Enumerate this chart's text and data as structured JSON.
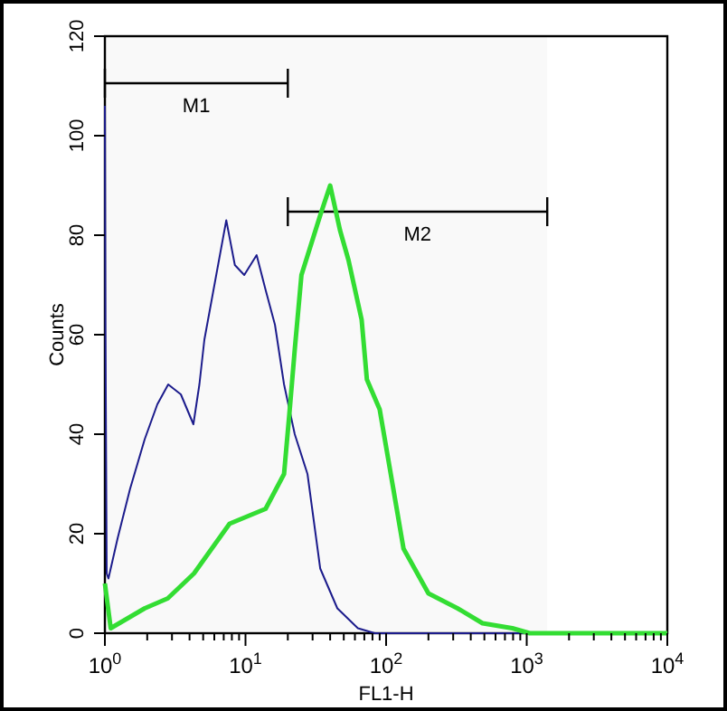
{
  "chart_data": {
    "type": "line",
    "xlabel": "FL1-H",
    "ylabel": "Counts",
    "log": "x",
    "xlim": [
      1,
      10000
    ],
    "ylim": [
      0,
      120
    ],
    "xticks": [
      {
        "value": 1,
        "label": "10$^{0}$"
      },
      {
        "value": 2,
        "label": null
      },
      {
        "value": 3,
        "label": null
      },
      {
        "value": 4,
        "label": null
      },
      {
        "value": 5,
        "label": null
      },
      {
        "value": 6,
        "label": null
      },
      {
        "value": 7,
        "label": null
      },
      {
        "value": 8,
        "label": null
      },
      {
        "value": 9,
        "label": null
      },
      {
        "value": 10,
        "label": "10$^{1}$"
      },
      {
        "value": 20,
        "label": null
      },
      {
        "value": 30,
        "label": null
      },
      {
        "value": 40,
        "label": null
      },
      {
        "value": 50,
        "label": null
      },
      {
        "value": 60,
        "label": null
      },
      {
        "value": 70,
        "label": null
      },
      {
        "value": 80,
        "label": null
      },
      {
        "value": 90,
        "label": null
      },
      {
        "value": 100,
        "label": "10$^{2}$"
      },
      {
        "value": 200,
        "label": null
      },
      {
        "value": 300,
        "label": null
      },
      {
        "value": 400,
        "label": null
      },
      {
        "value": 500,
        "label": null
      },
      {
        "value": 600,
        "label": null
      },
      {
        "value": 700,
        "label": null
      },
      {
        "value": 800,
        "label": null
      },
      {
        "value": 900,
        "label": null
      },
      {
        "value": 1000,
        "label": "10$^{3}$"
      },
      {
        "value": 2000,
        "label": null
      },
      {
        "value": 3000,
        "label": null
      },
      {
        "value": 4000,
        "label": null
      },
      {
        "value": 5000,
        "label": null
      },
      {
        "value": 6000,
        "label": null
      },
      {
        "value": 7000,
        "label": null
      },
      {
        "value": 8000,
        "label": null
      },
      {
        "value": 9000,
        "label": null
      },
      {
        "value": 10000,
        "label": "10$^{4}$"
      }
    ],
    "yticks": [
      0,
      20,
      40,
      60,
      80,
      100,
      120
    ],
    "grid": false,
    "bands": [
      {
        "axis": "x",
        "from": 1,
        "to": 20,
        "label": "M1"
      },
      {
        "axis": "x",
        "from": 20,
        "to": 1400,
        "label": "M2"
      }
    ],
    "series": [
      {
        "color": "#1c1c8c",
        "x": [
          1,
          1.01,
          1.03,
          1.06,
          1.23,
          1.51,
          1.92,
          2.36,
          2.82,
          3.47,
          4.26,
          4.7,
          5.1,
          7.3,
          8.4,
          9.8,
          12,
          13.9,
          16.2,
          18.8,
          22.4,
          27.6,
          34,
          45,
          63,
          83,
          200,
          1000,
          10000
        ],
        "values": [
          106,
          60,
          12,
          11,
          19,
          29,
          39,
          46,
          50,
          48,
          42,
          50,
          59,
          83,
          74,
          72,
          76,
          69,
          62,
          50,
          40,
          32,
          13,
          5,
          1,
          0,
          0,
          0,
          0
        ]
      },
      {
        "color": "#33dd33",
        "x": [
          1,
          1.1,
          1.92,
          2.8,
          4.3,
          7.7,
          13.9,
          18.8,
          20.5,
          22.4,
          25,
          34,
          40,
          47,
          54,
          67,
          73,
          90,
          111,
          133,
          200,
          322,
          485,
          790,
          1050,
          3000,
          10000
        ],
        "values": [
          10,
          1,
          5,
          7,
          12,
          22,
          25,
          32,
          44,
          57,
          72,
          84,
          90,
          81,
          75,
          63,
          51,
          45,
          30,
          17,
          8,
          5,
          2,
          1,
          0,
          0,
          0
        ]
      }
    ]
  }
}
